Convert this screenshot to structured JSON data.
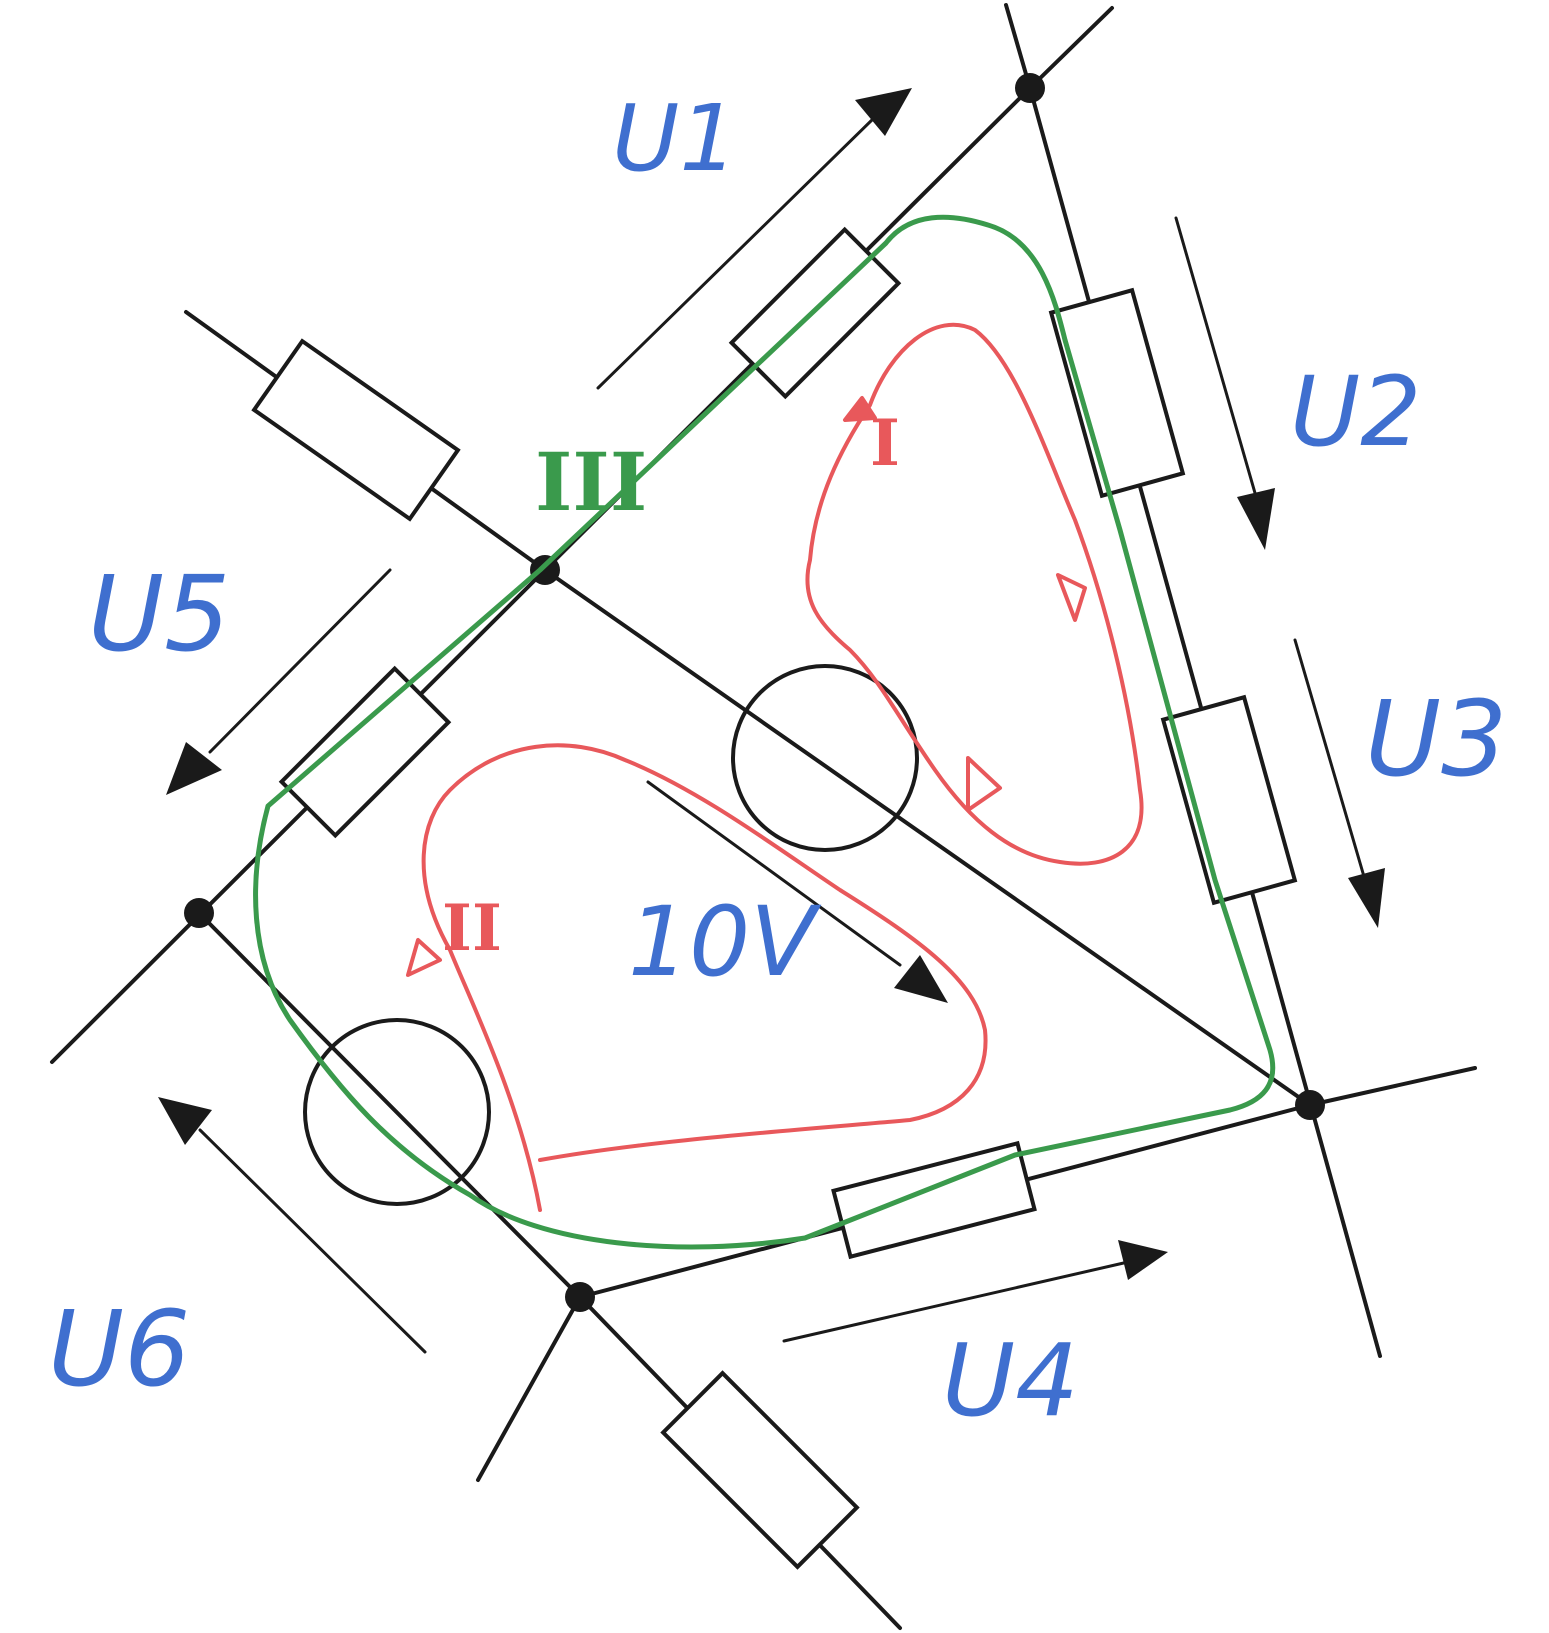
{
  "voltages": {
    "u1": "U1",
    "u2": "U2",
    "u3": "U3",
    "u4": "U4",
    "u5": "U5",
    "u6": "U6"
  },
  "source_value": "10V",
  "loops": {
    "loop1": "I",
    "loop2": "II",
    "loop3": "III"
  },
  "colors": {
    "ink": "#1a1a1a",
    "voltage_labels": "#3f6fcf",
    "mesh_loops": "#e8585b",
    "outer_loop": "#3a9a4c"
  }
}
